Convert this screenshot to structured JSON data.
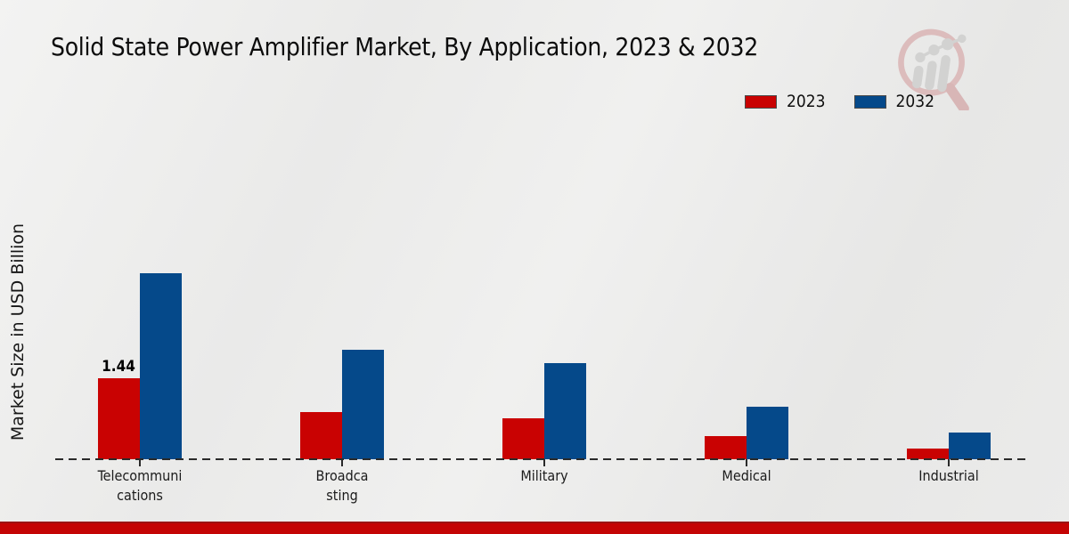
{
  "header": {
    "title": "Solid State Power Amplifier Market, By Application, 2023 & 2032"
  },
  "legend": [
    {
      "label": "2023",
      "color": "#c90202"
    },
    {
      "label": "2032",
      "color": "#05498a"
    }
  ],
  "chart_data": {
    "type": "bar",
    "title": "Solid State Power Amplifier Market, By Application, 2023 & 2032",
    "ylabel": "Market Size in USD Billion",
    "xlabel": "",
    "categories": [
      "Telecommunications",
      "Broadcasting",
      "Military",
      "Medical",
      "Industrial"
    ],
    "tick_labels": [
      "Telecommuni\ncations",
      "Broadca\nsting",
      "Military",
      "Medical",
      "Industrial"
    ],
    "series": [
      {
        "name": "2023",
        "color": "#c90202",
        "values": [
          1.44,
          0.84,
          0.73,
          0.41,
          0.19
        ],
        "value_labels": [
          "1.44",
          null,
          null,
          null,
          null
        ]
      },
      {
        "name": "2032",
        "color": "#05498a",
        "values": [
          3.32,
          1.95,
          1.71,
          0.93,
          0.47
        ],
        "value_labels": [
          null,
          null,
          null,
          null,
          null
        ]
      }
    ],
    "ylim": [
      0,
      3.6
    ],
    "grid": false,
    "legend_position": "top-right",
    "axis_style": "dashed-baseline-only"
  },
  "footer": {
    "stripe_color": "#c40404"
  },
  "logo": {
    "name": "market-research-magnifier-logo"
  }
}
